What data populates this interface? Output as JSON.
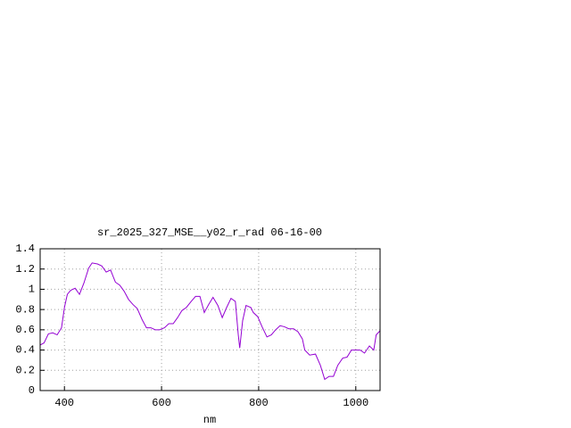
{
  "chart_data": {
    "type": "line",
    "title": "sr_2025_327_MSE__y02_r_rad 06-16-00",
    "x_label": "nm",
    "x": [
      350,
      358,
      367,
      376,
      385,
      394,
      400,
      406,
      413,
      422,
      431,
      440,
      450,
      457,
      468,
      477,
      486,
      495,
      505,
      514,
      523,
      532,
      541,
      550,
      560,
      569,
      578,
      587,
      596,
      606,
      615,
      624,
      633,
      642,
      651,
      661,
      670,
      679,
      688,
      697,
      706,
      716,
      725,
      734,
      743,
      752,
      758,
      761,
      767,
      774,
      784,
      789,
      798,
      807,
      817,
      826,
      835,
      844,
      853,
      862,
      872,
      881,
      890,
      895,
      905,
      917,
      927,
      936,
      945,
      954,
      963,
      973,
      982,
      991,
      1000,
      1009,
      1018,
      1028,
      1037,
      1042,
      1050
    ],
    "series": [
      {
        "color": "#9400d3",
        "values": [
          0.45,
          0.47,
          0.56,
          0.57,
          0.55,
          0.62,
          0.82,
          0.95,
          0.99,
          1.01,
          0.95,
          1.06,
          1.21,
          1.26,
          1.25,
          1.23,
          1.17,
          1.19,
          1.07,
          1.04,
          0.98,
          0.9,
          0.85,
          0.81,
          0.7,
          0.62,
          0.62,
          0.6,
          0.6,
          0.62,
          0.66,
          0.66,
          0.72,
          0.79,
          0.82,
          0.88,
          0.93,
          0.93,
          0.77,
          0.85,
          0.92,
          0.84,
          0.72,
          0.82,
          0.91,
          0.88,
          0.55,
          0.42,
          0.69,
          0.84,
          0.82,
          0.77,
          0.73,
          0.63,
          0.53,
          0.55,
          0.6,
          0.64,
          0.63,
          0.61,
          0.61,
          0.58,
          0.51,
          0.4,
          0.35,
          0.36,
          0.25,
          0.11,
          0.14,
          0.14,
          0.25,
          0.32,
          0.33,
          0.4,
          0.4,
          0.4,
          0.37,
          0.44,
          0.4,
          0.55,
          0.59
        ]
      }
    ],
    "xlim": [
      350,
      1050
    ],
    "xticks": [
      400,
      600,
      800,
      1000
    ],
    "ylim": [
      0,
      1.4
    ],
    "yticks": [
      0,
      0.2,
      0.4,
      0.6,
      0.8,
      1,
      1.2,
      1.4
    ],
    "grid": true
  }
}
